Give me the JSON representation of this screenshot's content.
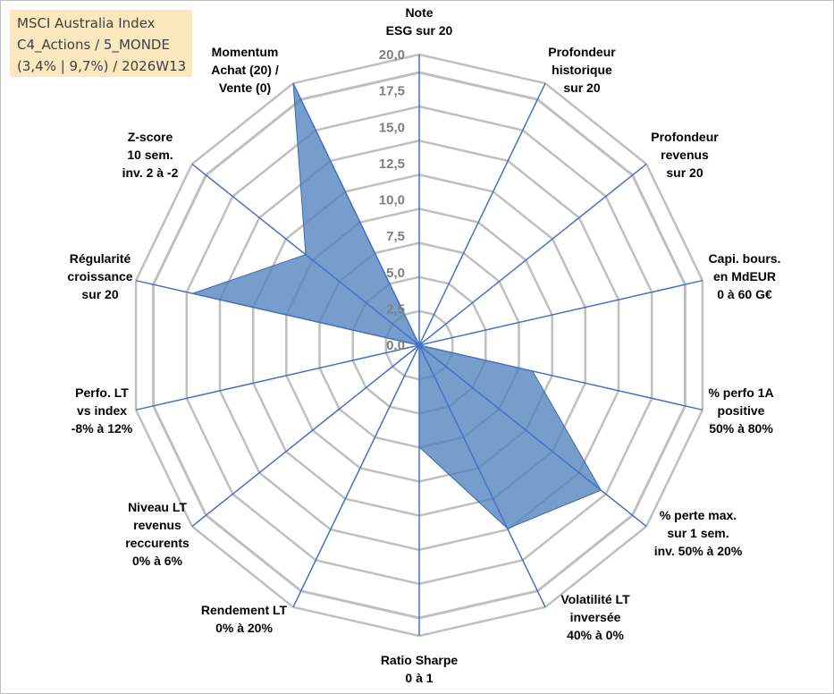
{
  "title_box": {
    "lines": [
      "MSCI Australia Index",
      "C4_Actions / 5_MONDE",
      "(3,4% | 9,7%) / 2026W13"
    ]
  },
  "chart_data": {
    "type": "radar",
    "r_range": [
      0,
      20
    ],
    "r_ticks": [
      "0,0",
      "2,5",
      "5,0",
      "7,5",
      "10,0",
      "12,5",
      "15,0",
      "17,5",
      "20,0"
    ],
    "axes": [
      [
        "Note",
        "ESG sur 20"
      ],
      [
        "Profondeur",
        "historique",
        "sur 20"
      ],
      [
        "Profondeur",
        "revenus",
        "sur 20"
      ],
      [
        "Capi. bours.",
        "en MdEUR",
        "0 à 60 G€"
      ],
      [
        "% perfo 1A",
        "positive",
        "50% à 80%"
      ],
      [
        "% perte max.",
        "sur 1 sem.",
        "inv. 50% à 20%"
      ],
      [
        "Volatilité LT",
        "inversée",
        "40% à 0%"
      ],
      [
        "Ratio Sharpe",
        "0 à 1"
      ],
      [
        "Rendement LT",
        "0% à 20%"
      ],
      [
        "Niveau LT",
        "revenus",
        "reccurents",
        "0% à 6%"
      ],
      [
        "Perfo. LT",
        "vs index",
        "-8% à 12%"
      ],
      [
        "Régularité",
        "croissance",
        "sur 20"
      ],
      [
        "Z-score",
        "10 sem.",
        "inv. 2 à -2"
      ],
      [
        "Momentum",
        "Achat (20) /",
        "Vente (0)"
      ]
    ],
    "values": [
      0,
      0,
      0,
      0,
      8,
      16,
      14,
      7,
      0,
      0,
      0,
      16,
      10,
      20
    ],
    "colors": {
      "fill": "#4f81bd",
      "grid": "#bfbfbf",
      "spoke": "#4472c4"
    },
    "grid": true,
    "legend": "none"
  }
}
